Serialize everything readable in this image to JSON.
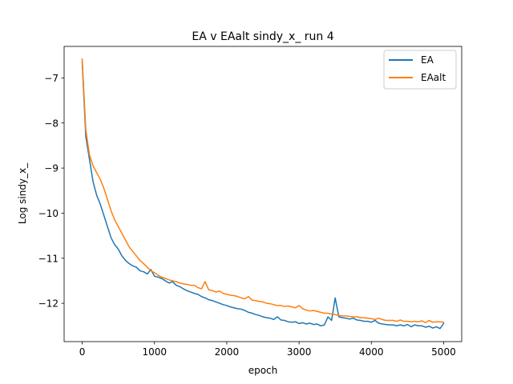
{
  "chart_data": {
    "type": "line",
    "title": "EA v EAalt sindy_x_ run 4",
    "xlabel": "epoch",
    "ylabel": "Log sindy_x_",
    "xlim": [
      -250,
      5250
    ],
    "ylim": [
      -12.85,
      -6.3
    ],
    "xticks": [
      0,
      1000,
      2000,
      3000,
      4000,
      5000
    ],
    "yticks": [
      -7,
      -8,
      -9,
      -10,
      -11,
      -12
    ],
    "grid": false,
    "legend_position": "top-right",
    "series": [
      {
        "name": "EA",
        "color": "#1f77b4",
        "x": [
          0,
          50,
          100,
          150,
          200,
          250,
          300,
          350,
          400,
          450,
          500,
          550,
          600,
          650,
          700,
          750,
          800,
          850,
          900,
          950,
          1000,
          1050,
          1100,
          1150,
          1200,
          1250,
          1300,
          1350,
          1400,
          1450,
          1500,
          1550,
          1600,
          1650,
          1700,
          1750,
          1800,
          1850,
          1900,
          1950,
          2000,
          2050,
          2100,
          2150,
          2200,
          2250,
          2300,
          2350,
          2400,
          2450,
          2500,
          2550,
          2600,
          2650,
          2700,
          2750,
          2800,
          2850,
          2900,
          2950,
          3000,
          3050,
          3100,
          3150,
          3200,
          3250,
          3300,
          3350,
          3400,
          3450,
          3500,
          3550,
          3600,
          3650,
          3700,
          3750,
          3800,
          3850,
          3900,
          3950,
          4000,
          4050,
          4100,
          4150,
          4200,
          4250,
          4300,
          4350,
          4400,
          4450,
          4500,
          4550,
          4600,
          4650,
          4700,
          4750,
          4800,
          4850,
          4900,
          4950,
          5000
        ],
        "values": [
          -6.65,
          -8.3,
          -8.8,
          -9.3,
          -9.6,
          -9.8,
          -10.05,
          -10.3,
          -10.55,
          -10.7,
          -10.8,
          -10.95,
          -11.05,
          -11.12,
          -11.17,
          -11.2,
          -11.28,
          -11.3,
          -11.35,
          -11.25,
          -11.4,
          -11.42,
          -11.45,
          -11.5,
          -11.55,
          -11.52,
          -11.6,
          -11.63,
          -11.68,
          -11.72,
          -11.75,
          -11.78,
          -11.8,
          -11.85,
          -11.88,
          -11.92,
          -11.94,
          -11.97,
          -12.0,
          -12.03,
          -12.05,
          -12.08,
          -12.1,
          -12.12,
          -12.13,
          -12.16,
          -12.2,
          -12.22,
          -12.25,
          -12.27,
          -12.3,
          -12.32,
          -12.33,
          -12.36,
          -12.3,
          -12.37,
          -12.38,
          -12.41,
          -12.42,
          -12.41,
          -12.45,
          -12.43,
          -12.46,
          -12.44,
          -12.47,
          -12.46,
          -12.5,
          -12.48,
          -12.3,
          -12.38,
          -11.88,
          -12.3,
          -12.32,
          -12.33,
          -12.35,
          -12.33,
          -12.37,
          -12.38,
          -12.4,
          -12.4,
          -12.42,
          -12.38,
          -12.44,
          -12.46,
          -12.47,
          -12.48,
          -12.48,
          -12.5,
          -12.48,
          -12.5,
          -12.47,
          -12.52,
          -12.48,
          -12.5,
          -12.5,
          -12.53,
          -12.51,
          -12.55,
          -12.52,
          -12.56,
          -12.45
        ]
      },
      {
        "name": "EAalt",
        "color": "#ff7f0e",
        "x": [
          0,
          50,
          100,
          150,
          200,
          250,
          300,
          350,
          400,
          450,
          500,
          550,
          600,
          650,
          700,
          750,
          800,
          850,
          900,
          950,
          1000,
          1050,
          1100,
          1150,
          1200,
          1250,
          1300,
          1350,
          1400,
          1450,
          1500,
          1550,
          1600,
          1650,
          1700,
          1750,
          1800,
          1850,
          1900,
          1950,
          2000,
          2050,
          2100,
          2150,
          2200,
          2250,
          2300,
          2350,
          2400,
          2450,
          2500,
          2550,
          2600,
          2650,
          2700,
          2750,
          2800,
          2850,
          2900,
          2950,
          3000,
          3050,
          3100,
          3150,
          3200,
          3250,
          3300,
          3350,
          3400,
          3450,
          3500,
          3550,
          3600,
          3650,
          3700,
          3750,
          3800,
          3850,
          3900,
          3950,
          4000,
          4050,
          4100,
          4150,
          4200,
          4250,
          4300,
          4350,
          4400,
          4450,
          4500,
          4550,
          4600,
          4650,
          4700,
          4750,
          4800,
          4850,
          4900,
          4950,
          5000
        ],
        "values": [
          -6.58,
          -8.15,
          -8.7,
          -8.95,
          -9.1,
          -9.25,
          -9.45,
          -9.7,
          -9.95,
          -10.15,
          -10.3,
          -10.45,
          -10.6,
          -10.75,
          -10.85,
          -10.95,
          -11.05,
          -11.12,
          -11.2,
          -11.28,
          -11.32,
          -11.38,
          -11.42,
          -11.45,
          -11.48,
          -11.5,
          -11.52,
          -11.55,
          -11.57,
          -11.58,
          -11.6,
          -11.6,
          -11.65,
          -11.68,
          -11.52,
          -11.7,
          -11.72,
          -11.75,
          -11.73,
          -11.78,
          -11.8,
          -11.82,
          -11.83,
          -11.85,
          -11.88,
          -11.9,
          -11.85,
          -11.93,
          -11.94,
          -11.96,
          -11.97,
          -12.0,
          -12.01,
          -12.03,
          -12.05,
          -12.05,
          -12.07,
          -12.06,
          -12.08,
          -12.1,
          -12.05,
          -12.12,
          -12.15,
          -12.17,
          -12.16,
          -12.18,
          -12.2,
          -12.22,
          -12.22,
          -12.24,
          -12.25,
          -12.27,
          -12.28,
          -12.28,
          -12.29,
          -12.3,
          -12.3,
          -12.32,
          -12.32,
          -12.33,
          -12.34,
          -12.36,
          -12.33,
          -12.36,
          -12.38,
          -12.38,
          -12.38,
          -12.4,
          -12.37,
          -12.4,
          -12.4,
          -12.41,
          -12.4,
          -12.41,
          -12.39,
          -12.43,
          -12.38,
          -12.42,
          -12.41,
          -12.41,
          -12.42
        ]
      }
    ]
  }
}
